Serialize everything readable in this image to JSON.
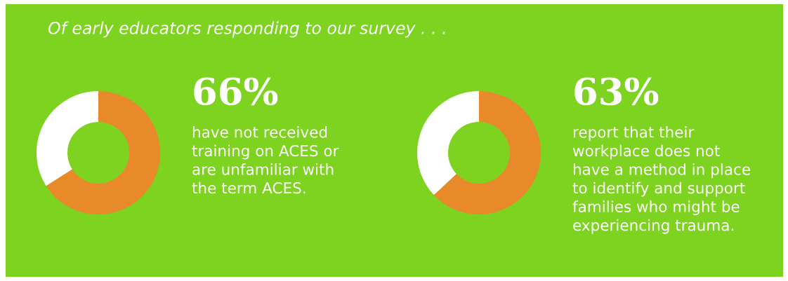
{
  "chart_data": [
    {
      "type": "donut",
      "title": "Of early educators responding to our survey . . .",
      "categories": [
        null,
        null
      ],
      "values": [
        66,
        34
      ],
      "colors": [
        "#e8892a",
        "#ffffff"
      ],
      "annotations": [
        "66%",
        "have not received\ntraining on ACES or\nare unfamiliar with\nthe term ACES."
      ]
    },
    {
      "type": "donut",
      "categories": [
        null,
        null
      ],
      "values": [
        63,
        37
      ],
      "colors": [
        "#e8892a",
        "#ffffff"
      ],
      "annotations": [
        "63%",
        "report that their\nworkplace does not\nhave a method in place\nto identify and support\nfamilies who might be\nexperiencing trauma."
      ]
    }
  ]
}
